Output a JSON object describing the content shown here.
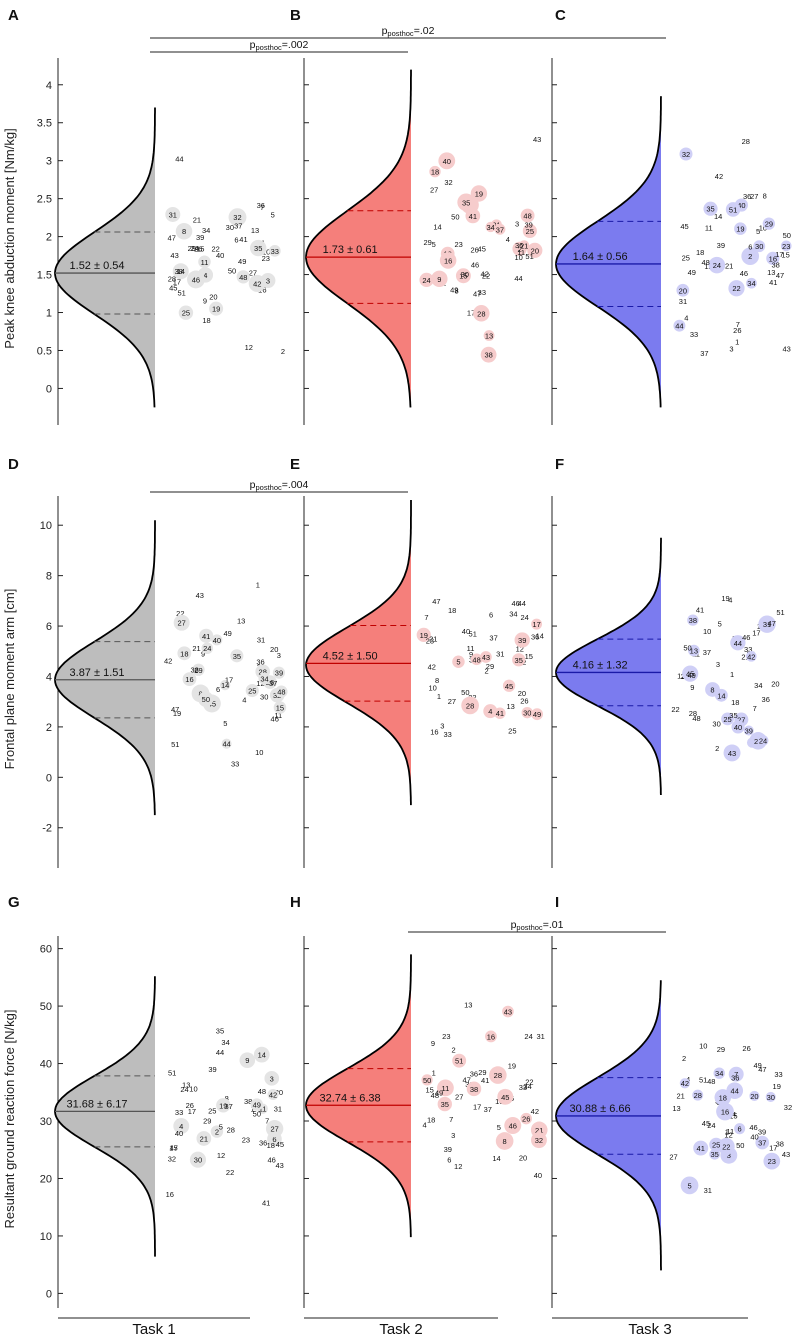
{
  "chart_data": {
    "type": "half-violin scatter",
    "panel_letters": [
      "A",
      "B",
      "C",
      "D",
      "E",
      "F",
      "G",
      "H",
      "I"
    ],
    "x_categories": [
      "Task 1",
      "Task 2",
      "Task 3"
    ],
    "colors": {
      "task1_fill": "#bdbdbd",
      "task2_fill": "#f57f7b",
      "task3_fill": "#7b7bef",
      "task1_dot": "#e4e4e4",
      "task2_dot": "#f6cccc",
      "task3_dot": "#cfcff6",
      "task1_line": "#555555",
      "task2_line": "#c00000",
      "task3_line": "#1a1aa8"
    },
    "rows": [
      {
        "ylabel": "Peak knee abduction moment [Nm/kg]",
        "ylim": [
          -0.35,
          4.3
        ],
        "yticks": [
          0,
          0.5,
          1,
          1.5,
          2,
          2.5,
          3,
          3.5,
          4
        ],
        "ytick_labels": [
          "0",
          "0.5",
          "1",
          "1.5",
          "2",
          "2.5",
          "3",
          "3.5",
          "4"
        ],
        "panels": [
          {
            "letter": "A",
            "mean": 1.52,
            "sd": 0.54,
            "stats": "1.52 ± 0.54",
            "min": -0.25,
            "max": 3.7,
            "peak": 1.52
          },
          {
            "letter": "B",
            "mean": 1.73,
            "sd": 0.61,
            "stats": "1.73 ± 0.61",
            "min": -0.25,
            "max": 4.2,
            "peak": 1.73
          },
          {
            "letter": "C",
            "mean": 1.64,
            "sd": 0.56,
            "stats": "1.64 ± 0.56",
            "min": -0.25,
            "max": 3.85,
            "peak": 1.64
          }
        ],
        "significance": [
          {
            "from": 0,
            "to": 2,
            "sub": "posthoc",
            "label": "=.02",
            "level": 0
          },
          {
            "from": 0,
            "to": 1,
            "sub": "posthoc",
            "label": "=.002",
            "level": 1
          }
        ]
      },
      {
        "ylabel": "Frontal plane moment arm [cm]",
        "ylim": [
          -3.2,
          11.0
        ],
        "yticks": [
          -2,
          0,
          2,
          4,
          6,
          8,
          10
        ],
        "ytick_labels": [
          "-2",
          "0",
          "2",
          "4",
          "6",
          "8",
          "10"
        ],
        "panels": [
          {
            "letter": "D",
            "mean": 3.87,
            "sd": 1.51,
            "stats": "3.87 ± 1.51",
            "min": -1.5,
            "max": 10.2,
            "peak": 3.87
          },
          {
            "letter": "E",
            "mean": 4.52,
            "sd": 1.5,
            "stats": "4.52 ± 1.50",
            "min": -1.1,
            "max": 11.0,
            "peak": 4.45
          },
          {
            "letter": "F",
            "mean": 4.16,
            "sd": 1.32,
            "stats": "4.16 ± 1.32",
            "min": -0.7,
            "max": 9.5,
            "peak": 4.16
          }
        ],
        "significance": [
          {
            "from": 0,
            "to": 1,
            "sub": "posthoc",
            "label": "=.004",
            "level": 1
          }
        ]
      },
      {
        "ylabel": "Resultant ground reaction force [N/kg]",
        "ylim": [
          -0.8,
          61.5
        ],
        "yticks": [
          0,
          10,
          20,
          30,
          40,
          50,
          60
        ],
        "ytick_labels": [
          "0",
          "10",
          "20",
          "30",
          "40",
          "50",
          "60"
        ],
        "panels": [
          {
            "letter": "G",
            "mean": 31.68,
            "sd": 6.17,
            "stats": "31.68 ± 6.17",
            "min": 6.4,
            "max": 55.2,
            "peak": 31.68
          },
          {
            "letter": "H",
            "mean": 32.74,
            "sd": 6.38,
            "stats": "32.74 ± 6.38",
            "min": 9.8,
            "max": 59.0,
            "peak": 32.74
          },
          {
            "letter": "I",
            "mean": 30.88,
            "sd": 6.66,
            "stats": "30.88 ± 6.66",
            "min": 4.0,
            "max": 54.5,
            "peak": 30.88
          }
        ],
        "significance": [
          {
            "from": 1,
            "to": 2,
            "sub": "posthoc",
            "label": "=.01",
            "level": 1
          }
        ]
      }
    ],
    "sig_prefix": "p"
  }
}
